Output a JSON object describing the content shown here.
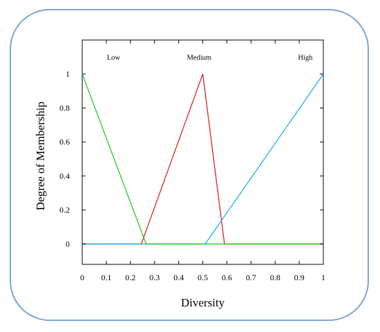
{
  "chart_data": {
    "type": "line",
    "xlabel": "Diversity",
    "ylabel": "Degree of Membership",
    "xlim": [
      0,
      1
    ],
    "ylim": [
      -0.12,
      1.2
    ],
    "x_ticks": [
      "0",
      "0.1",
      "0.2",
      "0.3",
      "0.4",
      "0.5",
      "0.6",
      "0.7",
      "0.8",
      "0.9",
      "1"
    ],
    "y_ticks": [
      "0",
      "0.2",
      "0.4",
      "0.6",
      "0.8",
      "1"
    ],
    "grid": false,
    "series": [
      {
        "name": "Low",
        "color": "#22cc22",
        "x": [
          0,
          0.265,
          1
        ],
        "y": [
          1,
          0,
          0
        ]
      },
      {
        "name": "Medium",
        "color": "#e02020",
        "x": [
          0,
          0.245,
          0.5,
          0.59,
          1
        ],
        "y": [
          0,
          0,
          1,
          0,
          0
        ]
      },
      {
        "name": "High",
        "color": "#18b4e0",
        "x": [
          0,
          0.51,
          1
        ],
        "y": [
          0,
          0,
          1
        ]
      }
    ],
    "labels": [
      {
        "text": "Low",
        "x": 0.13,
        "y": 1.085
      },
      {
        "text": "Medium",
        "x": 0.485,
        "y": 1.085
      },
      {
        "text": "High",
        "x": 0.925,
        "y": 1.085
      }
    ]
  }
}
